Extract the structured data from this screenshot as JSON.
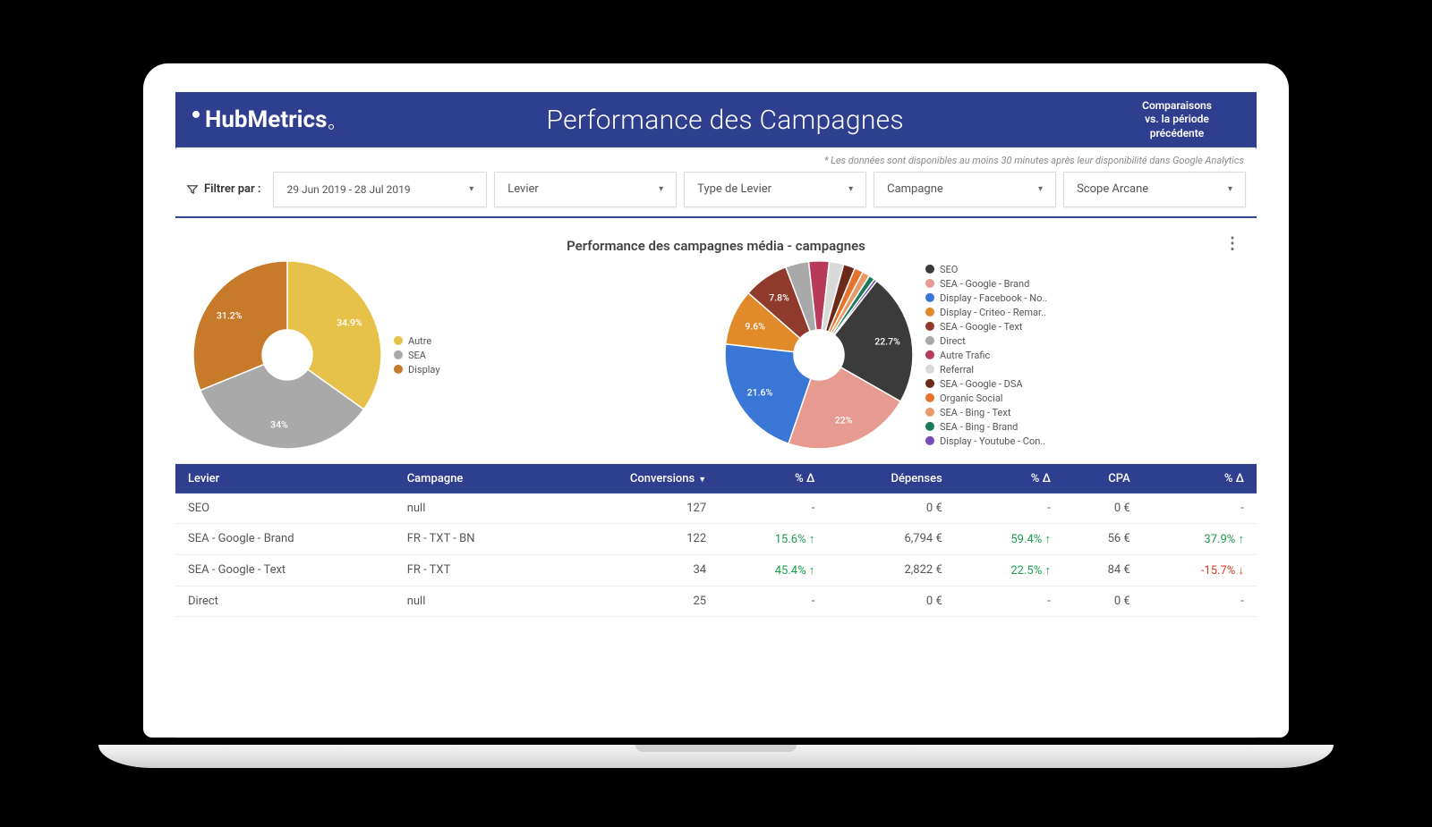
{
  "header": {
    "brand": "HubMetrics",
    "title": "Performance des Campagnes",
    "compare_line1": "Comparaisons",
    "compare_line2": "vs. la période",
    "compare_line3": "précédente"
  },
  "note": "* Les données sont disponibles au moins 30 minutes après leur disponibilité dans Google Analytics",
  "filters": {
    "label": "Filtrer par :",
    "date": "29 Jun 2019 - 28 Jul 2019",
    "items": [
      "Levier",
      "Type de Levier",
      "Campagne",
      "Scope Arcane"
    ]
  },
  "chart_section_title": "Performance des campagnes média - campagnes",
  "donut_left": {
    "type": "donut",
    "size": 210,
    "inner": 56,
    "background": "#ffffff",
    "slices": [
      {
        "label": "Autre",
        "value": 34.9,
        "color": "#e7c24a",
        "show_label": "34.9%"
      },
      {
        "label": "SEA",
        "value": 34.0,
        "color": "#a9a9a9",
        "show_label": "34%"
      },
      {
        "label": "Display",
        "value": 31.2,
        "color": "#c77b2a",
        "show_label": "31.2%"
      }
    ],
    "legend": [
      {
        "label": "Autre",
        "color": "#e7c24a"
      },
      {
        "label": "SEA",
        "color": "#a9a9a9"
      },
      {
        "label": "Display",
        "color": "#c77b2a"
      }
    ],
    "label_fontsize": 10.5,
    "label_color": "#ffffff"
  },
  "donut_right": {
    "type": "donut",
    "size": 210,
    "inner": 56,
    "background": "#ffffff",
    "slices": [
      {
        "label": "SEO",
        "value": 22.7,
        "color": "#3b3b3b",
        "show_label": "22.7%"
      },
      {
        "label": "SEA - Google - Brand",
        "value": 22.0,
        "color": "#e79a8f",
        "show_label": "22%"
      },
      {
        "label": "Display - Facebook - No..",
        "value": 21.6,
        "color": "#3a76d6",
        "show_label": "21.6%"
      },
      {
        "label": "Display - Criteo - Remar..",
        "value": 9.6,
        "color": "#e08a2a",
        "show_label": "9.6%"
      },
      {
        "label": "SEA - Google - Text",
        "value": 7.8,
        "color": "#8f3a2a",
        "show_label": "7.8%"
      },
      {
        "label": "Direct",
        "value": 4.0,
        "color": "#a9a9a9",
        "show_label": ""
      },
      {
        "label": "Autre Trafic",
        "value": 3.5,
        "color": "#b73a5b",
        "show_label": ""
      },
      {
        "label": "Referral",
        "value": 2.5,
        "color": "#d9d9d9",
        "show_label": ""
      },
      {
        "label": "SEA - Google - DSA",
        "value": 2.0,
        "color": "#6b2a1a",
        "show_label": ""
      },
      {
        "label": "Organic Social",
        "value": 1.5,
        "color": "#e6732a",
        "show_label": ""
      },
      {
        "label": "SEA - Bing - Text",
        "value": 1.3,
        "color": "#e69a6a",
        "show_label": ""
      },
      {
        "label": "SEA - Bing - Brand",
        "value": 1.0,
        "color": "#1a7a5a",
        "show_label": ""
      },
      {
        "label": "Display - Youtube - Con..",
        "value": 0.5,
        "color": "#7a4ab7",
        "show_label": ""
      }
    ],
    "legend": [
      {
        "label": "SEO",
        "color": "#3b3b3b"
      },
      {
        "label": "SEA - Google - Brand",
        "color": "#e79a8f"
      },
      {
        "label": "Display - Facebook - No..",
        "color": "#3a76d6"
      },
      {
        "label": "Display - Criteo - Remar..",
        "color": "#e08a2a"
      },
      {
        "label": "SEA - Google - Text",
        "color": "#8f3a2a"
      },
      {
        "label": "Direct",
        "color": "#a9a9a9"
      },
      {
        "label": "Autre Trafic",
        "color": "#b73a5b"
      },
      {
        "label": "Referral",
        "color": "#d9d9d9"
      },
      {
        "label": "SEA - Google - DSA",
        "color": "#6b2a1a"
      },
      {
        "label": "Organic Social",
        "color": "#e6732a"
      },
      {
        "label": "SEA - Bing - Text",
        "color": "#e69a6a"
      },
      {
        "label": "SEA - Bing - Brand",
        "color": "#1a7a5a"
      },
      {
        "label": "Display - Youtube - Con..",
        "color": "#7a4ab7"
      }
    ],
    "label_fontsize": 10.5,
    "label_color": "#ffffff"
  },
  "table": {
    "header_bg": "#2f3f8f",
    "header_fg": "#ffffff",
    "columns": [
      "Levier",
      "Campagne",
      "Conversions",
      "% Δ",
      "Dépenses",
      "% Δ",
      "CPA",
      "% Δ"
    ],
    "sort_col_index": 2,
    "rows": [
      {
        "levier": "SEO",
        "campagne": "null",
        "conv": "127",
        "conv_d": "-",
        "conv_dir": "",
        "dep": "0 €",
        "dep_d": "-",
        "dep_dir": "",
        "cpa": "0 €",
        "cpa_d": "-",
        "cpa_dir": ""
      },
      {
        "levier": "SEA - Google - Brand",
        "campagne": "FR - TXT - BN",
        "conv": "122",
        "conv_d": "15.6%",
        "conv_dir": "up",
        "dep": "6,794 €",
        "dep_d": "59.4%",
        "dep_dir": "up",
        "cpa": "56 €",
        "cpa_d": "37.9%",
        "cpa_dir": "up"
      },
      {
        "levier": "SEA - Google - Text",
        "campagne": "FR - TXT",
        "conv": "34",
        "conv_d": "45.4%",
        "conv_dir": "up",
        "dep": "2,822 €",
        "dep_d": "22.5%",
        "dep_dir": "up",
        "cpa": "84 €",
        "cpa_d": "-15.7%",
        "cpa_dir": "down"
      },
      {
        "levier": "Direct",
        "campagne": "null",
        "conv": "25",
        "conv_d": "-",
        "conv_dir": "",
        "dep": "0 €",
        "dep_d": "-",
        "dep_dir": "",
        "cpa": "0 €",
        "cpa_d": "-",
        "cpa_dir": ""
      }
    ]
  },
  "colors": {
    "brand_bg": "#2f3f8f",
    "up": "#1a9e4b",
    "down": "#d13b2a",
    "border": "#d9d9d9"
  }
}
